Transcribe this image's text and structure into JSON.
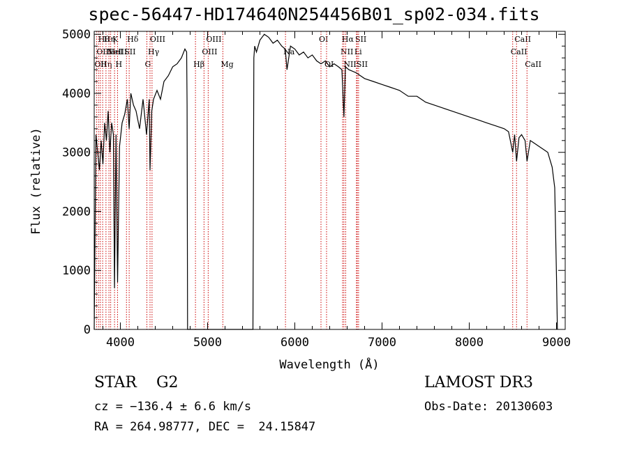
{
  "chart_data": {
    "type": "line",
    "title": "spec-56447-HD174640N254456B01_sp02-034.fits",
    "xlabel": "Wavelength (Å)",
    "ylabel": "Flux (relative)",
    "xlim": [
      3700,
      9100
    ],
    "ylim": [
      0,
      5050
    ],
    "xticks": [
      4000,
      5000,
      6000,
      7000,
      8000,
      9000
    ],
    "yticks": [
      0,
      1000,
      2000,
      3000,
      4000,
      5000
    ],
    "series": [
      {
        "name": "flux",
        "color": "#000000",
        "x": [
          3700,
          3720,
          3740,
          3760,
          3780,
          3800,
          3820,
          3840,
          3860,
          3880,
          3900,
          3920,
          3933,
          3950,
          3968,
          3990,
          4020,
          4050,
          4080,
          4101,
          4120,
          4150,
          4180,
          4220,
          4260,
          4300,
          4330,
          4340,
          4360,
          4380,
          4420,
          4460,
          4500,
          4550,
          4600,
          4650,
          4700,
          4740,
          4760,
          4765,
          4770,
          4780,
          5000,
          5300,
          5520,
          5530,
          5540,
          5560,
          5600,
          5650,
          5700,
          5750,
          5800,
          5850,
          5890,
          5910,
          5950,
          6000,
          6050,
          6100,
          6150,
          6200,
          6250,
          6300,
          6350,
          6400,
          6450,
          6500,
          6540,
          6563,
          6580,
          6620,
          6700,
          6800,
          6900,
          7000,
          7100,
          7200,
          7300,
          7400,
          7500,
          7600,
          7700,
          7800,
          7900,
          8000,
          8100,
          8200,
          8300,
          8400,
          8450,
          8498,
          8520,
          8542,
          8570,
          8600,
          8640,
          8662,
          8700,
          8750,
          8800,
          8850,
          8900,
          8950,
          8980,
          9000,
          9010
        ],
        "values": [
          0,
          3300,
          3000,
          2700,
          3200,
          2800,
          3500,
          3200,
          3700,
          3000,
          3500,
          3300,
          700,
          3300,
          800,
          3100,
          3500,
          3650,
          3900,
          3400,
          4000,
          3800,
          3700,
          3400,
          3900,
          3300,
          3900,
          2700,
          3700,
          3900,
          4050,
          3900,
          4200,
          4300,
          4450,
          4500,
          4600,
          4750,
          4700,
          3800,
          0,
          0,
          0,
          0,
          0,
          4600,
          4800,
          4700,
          4900,
          5000,
          4950,
          4850,
          4900,
          4800,
          4750,
          4400,
          4800,
          4750,
          4650,
          4700,
          4600,
          4650,
          4550,
          4500,
          4550,
          4450,
          4500,
          4450,
          4400,
          3600,
          4450,
          4400,
          4350,
          4250,
          4200,
          4150,
          4100,
          4050,
          3950,
          3950,
          3850,
          3800,
          3750,
          3700,
          3650,
          3600,
          3550,
          3500,
          3450,
          3400,
          3350,
          3000,
          3300,
          2850,
          3250,
          3300,
          3200,
          2850,
          3200,
          3150,
          3100,
          3050,
          3000,
          2750,
          2400,
          900,
          0
        ]
      }
    ],
    "line_markers": [
      {
        "wl": 3727,
        "label": "OII",
        "row": 2
      },
      {
        "wl": 3750,
        "label": "OIII",
        "row": 1
      },
      {
        "wl": 3770,
        "label": "Hθ",
        "row": 0
      },
      {
        "wl": 3797,
        "label": "Hη",
        "row": 2
      },
      {
        "wl": 3835,
        "label": "Hη",
        "row": 0
      },
      {
        "wl": 3869,
        "label": "NeIII",
        "row": 1
      },
      {
        "wl": 3889,
        "label": "HeI",
        "row": 1
      },
      {
        "wl": 3933,
        "label": "K",
        "row": 0
      },
      {
        "wl": 3968,
        "label": "H",
        "row": 2
      },
      {
        "wl": 4070,
        "label": "SII",
        "row": 1
      },
      {
        "wl": 4101,
        "label": "Hδ",
        "row": 0
      },
      {
        "wl": 4304,
        "label": "G",
        "row": 2
      },
      {
        "wl": 4340,
        "label": "Hγ",
        "row": 1
      },
      {
        "wl": 4363,
        "label": "OIII",
        "row": 0
      },
      {
        "wl": 4861,
        "label": "Hβ",
        "row": 2
      },
      {
        "wl": 4959,
        "label": "OIII",
        "row": 1
      },
      {
        "wl": 5007,
        "label": "OIII",
        "row": 0
      },
      {
        "wl": 5175,
        "label": "Mg",
        "row": 2
      },
      {
        "wl": 5893,
        "label": "Na",
        "row": 1
      },
      {
        "wl": 6300,
        "label": "OI",
        "row": 0
      },
      {
        "wl": 6364,
        "label": "OI",
        "row": 2
      },
      {
        "wl": 6548,
        "label": "NII",
        "row": 1
      },
      {
        "wl": 6563,
        "label": "Hα",
        "row": 0
      },
      {
        "wl": 6583,
        "label": "NII",
        "row": 2
      },
      {
        "wl": 6707,
        "label": "Li",
        "row": 1
      },
      {
        "wl": 6716,
        "label": "SII",
        "row": 0
      },
      {
        "wl": 6731,
        "label": "SII",
        "row": 2
      },
      {
        "wl": 8498,
        "label": "CaII",
        "row": 1
      },
      {
        "wl": 8542,
        "label": "CaII",
        "row": 0
      },
      {
        "wl": 8662,
        "label": "CaII",
        "row": 2
      }
    ]
  },
  "info": {
    "class_label": "STAR",
    "subclass": "G2",
    "survey": "LAMOST DR3",
    "cz": "cz = −136.4 ± 6.6 km/s",
    "obs_date": "Obs-Date: 20130603",
    "radec": "RA = 264.98777, DEC =  24.15847"
  },
  "colors": {
    "marker": "#cc0000",
    "axis": "#000000",
    "spectrum": "#000000"
  }
}
